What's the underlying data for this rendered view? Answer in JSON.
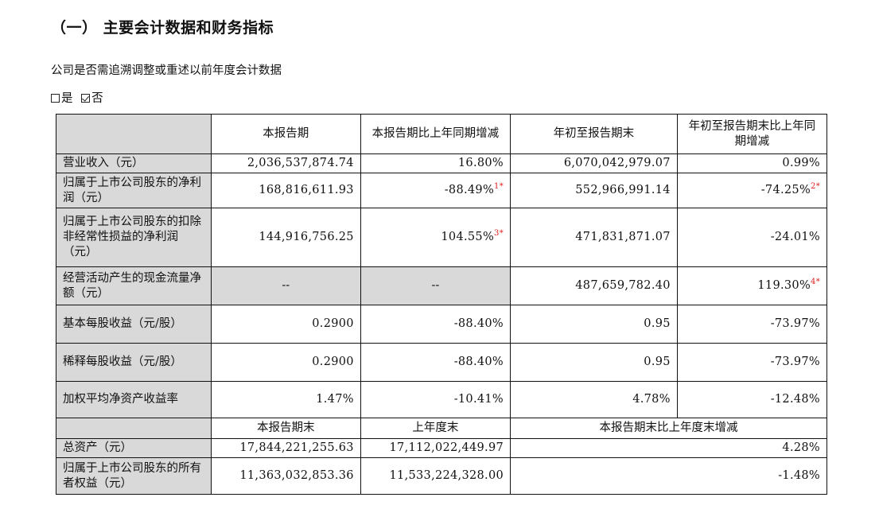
{
  "heading": "（一） 主要会计数据和财务指标",
  "question": "公司是否需追溯调整或重述以前年度会计数据",
  "options": [
    {
      "label": "是",
      "checked": false
    },
    {
      "label": "否",
      "checked": true
    }
  ],
  "header": {
    "c2": "本报告期",
    "c3": "本报告期比上年同期增减",
    "c4": "年初至报告期末",
    "c5": "年初至报告期末比上年同期增减"
  },
  "rows": [
    {
      "label": "营业收入（元）",
      "v1": "2,036,537,874.74",
      "v2": "16.80%",
      "v3": "6,070,042,979.07",
      "v4": "0.99%"
    },
    {
      "label": "归属于上市公司股东的净利润（元）",
      "v1": "168,816,611.93",
      "v2": "-88.49%",
      "v2_note": "1*",
      "v3": "552,966,991.14",
      "v4": "-74.25%",
      "v4_note": "2*"
    },
    {
      "label": "归属于上市公司股东的扣除非经常性损益的净利润（元）",
      "v1": "144,916,756.25",
      "v2": "104.55%",
      "v2_note": "3*",
      "v3": "471,831,871.07",
      "v4": "-24.01%"
    },
    {
      "label": "经营活动产生的现金流量净额（元）",
      "v1": "--",
      "v2": "--",
      "v3": "487,659,782.40",
      "v4": "119.30%",
      "v4_note": "4*"
    },
    {
      "label": "基本每股收益（元/股）",
      "v1": "0.2900",
      "v2": "-88.40%",
      "v3": "0.95",
      "v4": "-73.97%"
    },
    {
      "label": "稀释每股收益（元/股）",
      "v1": "0.2900",
      "v2": "-88.40%",
      "v3": "0.95",
      "v4": "-73.97%"
    },
    {
      "label": "加权平均净资产收益率",
      "v1": "1.47%",
      "v2": "-10.41%",
      "v3": "4.78%",
      "v4": "-12.48%"
    }
  ],
  "header2": {
    "c2": "本报告期末",
    "c3": "上年度末",
    "c45": "本报告期末比上年度末增减"
  },
  "rows2": [
    {
      "label": "总资产（元）",
      "v1": "17,844,221,255.63",
      "v2": "17,112,022,449.97",
      "v3": "4.28%"
    },
    {
      "label": "归属于上市公司股东的所有者权益（元）",
      "v1": "11,363,032,853.36",
      "v2": "11,533,224,328.00",
      "v3": "-1.48%"
    }
  ]
}
